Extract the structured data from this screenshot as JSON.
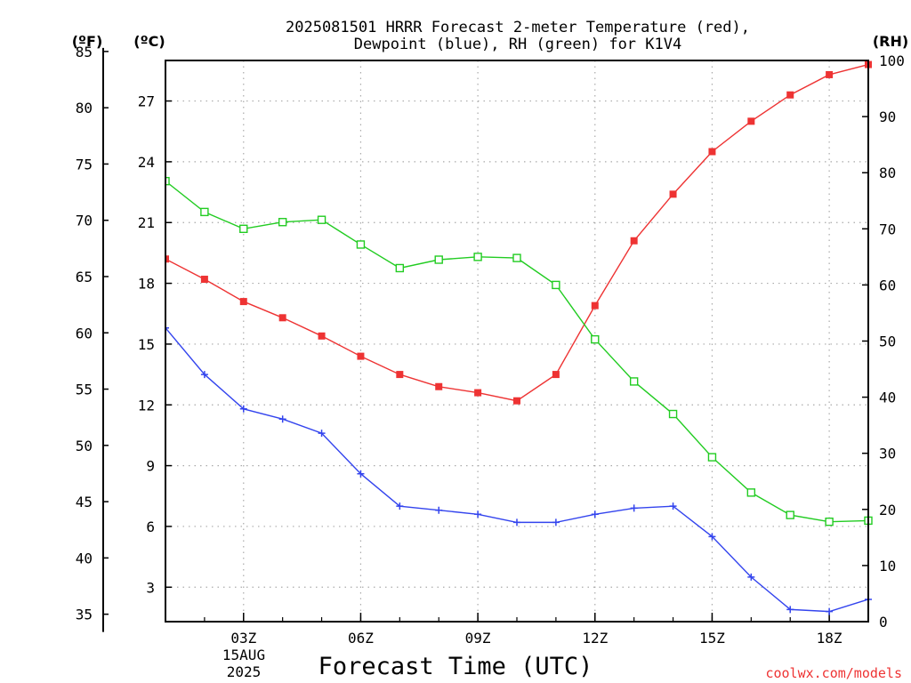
{
  "chart_data": {
    "type": "line",
    "title": "2025081501 HRRR Forecast 2-meter Temperature (red),",
    "subtitle": "Dewpoint (blue), RH (green) for K1V4",
    "xlabel": "Forecast Time (UTC)",
    "left_unit_outer": "(ºF)",
    "left_unit_inner": "(ºC)",
    "right_unit": "(RH)",
    "date_label_day": "15AUG",
    "date_label_year": "2025",
    "watermark": "coolwx.com/models",
    "x_range_hours": [
      1,
      19
    ],
    "y_range_c": [
      1.3,
      29.0
    ],
    "rh_range": [
      0,
      100
    ],
    "x_ticks": [
      {
        "hour": 3,
        "label": "03Z"
      },
      {
        "hour": 6,
        "label": "06Z"
      },
      {
        "hour": 9,
        "label": "09Z"
      },
      {
        "hour": 12,
        "label": "12Z"
      },
      {
        "hour": 15,
        "label": "15Z"
      },
      {
        "hour": 18,
        "label": "18Z"
      }
    ],
    "celsius_ticks": [
      3,
      6,
      9,
      12,
      15,
      18,
      21,
      24,
      27
    ],
    "fahrenheit_ticks": [
      35,
      40,
      45,
      50,
      55,
      60,
      65,
      70,
      75,
      80,
      85
    ],
    "rh_ticks": [
      0,
      10,
      20,
      30,
      40,
      50,
      60,
      70,
      80,
      90,
      100
    ],
    "grid": true,
    "colors": {
      "temperature": "#ee3333",
      "dewpoint": "#3344ee",
      "rh": "#22cc22",
      "watermark": "#ee3333"
    },
    "x": [
      1,
      2,
      3,
      4,
      5,
      6,
      7,
      8,
      9,
      10,
      11,
      12,
      13,
      14,
      15,
      16,
      17,
      18,
      19
    ],
    "series": [
      {
        "key": "temperature",
        "axis": "celsius",
        "marker": "filled-square",
        "values": [
          19.2,
          18.2,
          17.1,
          16.3,
          15.4,
          14.4,
          13.5,
          12.9,
          12.6,
          12.2,
          13.5,
          16.9,
          20.1,
          22.4,
          24.5,
          26.0,
          27.3,
          28.3,
          28.8
        ]
      },
      {
        "key": "dewpoint",
        "axis": "celsius",
        "marker": "plus",
        "values": [
          15.8,
          13.5,
          11.8,
          11.3,
          10.6,
          8.6,
          7.0,
          6.8,
          6.6,
          6.2,
          6.2,
          6.6,
          6.9,
          7.0,
          5.5,
          3.5,
          1.9,
          1.8,
          2.4
        ]
      },
      {
        "key": "rh",
        "axis": "rh",
        "marker": "open-square",
        "values": [
          78.5,
          73.0,
          70.0,
          71.2,
          71.6,
          67.2,
          63.0,
          64.5,
          65.0,
          64.8,
          60.0,
          50.3,
          42.8,
          37.0,
          29.3,
          23.0,
          19.0,
          17.8,
          18.0
        ]
      }
    ]
  }
}
